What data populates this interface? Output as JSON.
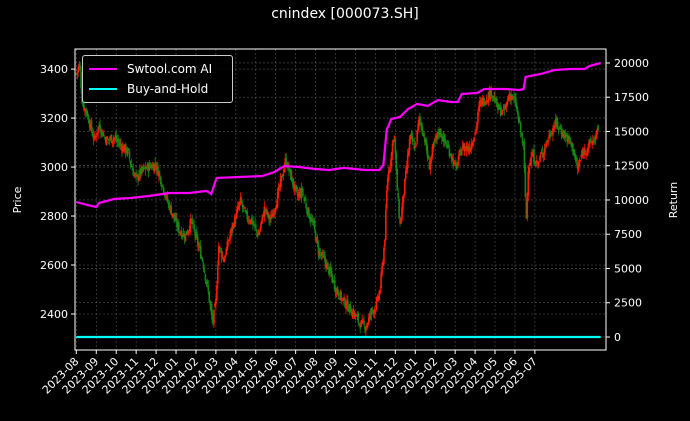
{
  "title": "cnindex [000073.SH]",
  "chart_data": {
    "type": "line",
    "title": "cnindex [000073.SH]",
    "xlabel": "",
    "ylabel": "Price",
    "y2label": "Return",
    "xlim": [
      "2023-07-29",
      "2025-10-18"
    ],
    "ylim": [
      2253,
      3482
    ],
    "y2lim": [
      -950,
      21020
    ],
    "grid": true,
    "legend_position": "top-left",
    "x_ticks": [
      "2023-08",
      "2023-09",
      "2023-10",
      "2023-11",
      "2023-12",
      "2024-01",
      "2024-02",
      "2024-03",
      "2024-04",
      "2024-05",
      "2024-06",
      "2024-07",
      "2024-08",
      "2024-09",
      "2024-10",
      "2024-11",
      "2024-12",
      "2025-01",
      "2025-02",
      "2025-03",
      "2025-04",
      "2025-05",
      "2025-06",
      "2025-07"
    ],
    "y_ticks": [
      2400,
      2600,
      2800,
      3000,
      3200,
      3400
    ],
    "y2_ticks": [
      0,
      2500,
      5000,
      7500,
      10000,
      12500,
      15000,
      17500,
      20000
    ],
    "colors": {
      "up": "#ff1a00",
      "down": "#128a12",
      "strategy": "#ff00ff",
      "buy_hold": "#00ffff",
      "grid": "#555555"
    },
    "price_candles_path": [
      [
        "2023-08-01",
        3380
      ],
      [
        "2023-08-06",
        3420
      ],
      [
        "2023-08-10",
        3260
      ],
      [
        "2023-08-17",
        3220
      ],
      [
        "2023-08-28",
        3110
      ],
      [
        "2023-09-05",
        3170
      ],
      [
        "2023-09-16",
        3110
      ],
      [
        "2023-09-28",
        3120
      ],
      [
        "2023-10-07",
        3090
      ],
      [
        "2023-10-19",
        3060
      ],
      [
        "2023-10-24",
        3000
      ],
      [
        "2023-11-01",
        2950
      ],
      [
        "2023-11-08",
        2980
      ],
      [
        "2023-11-19",
        3000
      ],
      [
        "2023-11-30",
        3010
      ],
      [
        "2023-12-07",
        2960
      ],
      [
        "2023-12-18",
        2860
      ],
      [
        "2023-12-27",
        2800
      ],
      [
        "2024-01-06",
        2740
      ],
      [
        "2024-01-15",
        2720
      ],
      [
        "2024-01-24",
        2780
      ],
      [
        "2024-02-02",
        2700
      ],
      [
        "2024-02-11",
        2620
      ],
      [
        "2024-02-20",
        2480
      ],
      [
        "2024-02-26",
        2360
      ],
      [
        "2024-03-01",
        2450
      ],
      [
        "2024-03-05",
        2680
      ],
      [
        "2024-03-13",
        2620
      ],
      [
        "2024-03-22",
        2720
      ],
      [
        "2024-04-01",
        2800
      ],
      [
        "2024-04-08",
        2860
      ],
      [
        "2024-04-16",
        2800
      ],
      [
        "2024-04-25",
        2780
      ],
      [
        "2024-05-05",
        2720
      ],
      [
        "2024-05-14",
        2830
      ],
      [
        "2024-05-23",
        2780
      ],
      [
        "2024-06-01",
        2850
      ],
      [
        "2024-06-08",
        2930
      ],
      [
        "2024-06-16",
        3030
      ],
      [
        "2024-06-24",
        2960
      ],
      [
        "2024-07-03",
        2880
      ],
      [
        "2024-07-11",
        2900
      ],
      [
        "2024-07-19",
        2820
      ],
      [
        "2024-07-28",
        2760
      ],
      [
        "2024-08-05",
        2660
      ],
      [
        "2024-08-14",
        2620
      ],
      [
        "2024-08-24",
        2560
      ],
      [
        "2024-09-02",
        2500
      ],
      [
        "2024-09-11",
        2460
      ],
      [
        "2024-09-20",
        2430
      ],
      [
        "2024-09-29",
        2400
      ],
      [
        "2024-10-08",
        2360
      ],
      [
        "2024-10-17",
        2350
      ],
      [
        "2024-10-25",
        2410
      ],
      [
        "2024-11-02",
        2430
      ],
      [
        "2024-11-08",
        2500
      ],
      [
        "2024-11-15",
        2700
      ],
      [
        "2024-11-19",
        2950
      ],
      [
        "2024-11-25",
        3050
      ],
      [
        "2024-11-29",
        3150
      ],
      [
        "2024-12-04",
        2900
      ],
      [
        "2024-12-08",
        2760
      ],
      [
        "2024-12-16",
        2950
      ],
      [
        "2024-12-23",
        3120
      ],
      [
        "2025-01-01",
        3080
      ],
      [
        "2025-01-07",
        3200
      ],
      [
        "2025-01-15",
        3120
      ],
      [
        "2025-01-22",
        3000
      ],
      [
        "2025-01-28",
        3080
      ],
      [
        "2025-02-07",
        3150
      ],
      [
        "2025-02-16",
        3100
      ],
      [
        "2025-02-25",
        3050
      ],
      [
        "2025-03-02",
        2990
      ],
      [
        "2025-03-11",
        3080
      ],
      [
        "2025-03-23",
        3080
      ],
      [
        "2025-04-02",
        3150
      ],
      [
        "2025-04-08",
        3260
      ],
      [
        "2025-04-17",
        3280
      ],
      [
        "2025-04-26",
        3310
      ],
      [
        "2025-05-05",
        3240
      ],
      [
        "2025-05-14",
        3220
      ],
      [
        "2025-05-23",
        3300
      ],
      [
        "2025-06-02",
        3260
      ],
      [
        "2025-06-09",
        3150
      ],
      [
        "2025-06-14",
        3080
      ],
      [
        "2025-06-18",
        2780
      ],
      [
        "2025-06-21",
        3000
      ],
      [
        "2025-06-27",
        3050
      ],
      [
        "2025-07-05",
        3010
      ],
      [
        "2025-07-14",
        3070
      ],
      [
        "2025-07-23",
        3130
      ],
      [
        "2025-08-02",
        3180
      ],
      [
        "2025-08-10",
        3150
      ],
      [
        "2025-08-19",
        3120
      ],
      [
        "2025-08-28",
        3080
      ],
      [
        "2025-09-05",
        2990
      ],
      [
        "2025-09-13",
        3060
      ],
      [
        "2025-09-23",
        3090
      ],
      [
        "2025-10-02",
        3120
      ],
      [
        "2025-10-08",
        3160
      ]
    ],
    "series": [
      {
        "name": "Swtool.com AI",
        "axis": "right",
        "color": "#ff00ff",
        "points": [
          [
            "2023-08-01",
            9850
          ],
          [
            "2023-08-17",
            9640
          ],
          [
            "2023-08-31",
            9490
          ],
          [
            "2023-09-05",
            9780
          ],
          [
            "2023-09-28",
            10070
          ],
          [
            "2023-10-24",
            10150
          ],
          [
            "2023-11-20",
            10290
          ],
          [
            "2023-12-21",
            10510
          ],
          [
            "2024-01-21",
            10510
          ],
          [
            "2024-02-17",
            10660
          ],
          [
            "2024-02-24",
            10440
          ],
          [
            "2024-03-02",
            11610
          ],
          [
            "2024-04-07",
            11680
          ],
          [
            "2024-05-11",
            11750
          ],
          [
            "2024-05-29",
            12040
          ],
          [
            "2024-06-14",
            12480
          ],
          [
            "2024-07-06",
            12410
          ],
          [
            "2024-07-30",
            12260
          ],
          [
            "2024-08-22",
            12190
          ],
          [
            "2024-09-14",
            12340
          ],
          [
            "2024-10-15",
            12190
          ],
          [
            "2024-11-07",
            12190
          ],
          [
            "2024-11-13",
            12560
          ],
          [
            "2024-11-18",
            15110
          ],
          [
            "2024-11-25",
            15910
          ],
          [
            "2024-12-08",
            16060
          ],
          [
            "2024-12-20",
            16640
          ],
          [
            "2025-01-04",
            17010
          ],
          [
            "2025-01-20",
            16860
          ],
          [
            "2025-02-05",
            17300
          ],
          [
            "2025-02-25",
            17150
          ],
          [
            "2025-03-05",
            17150
          ],
          [
            "2025-03-11",
            17740
          ],
          [
            "2025-04-04",
            17810
          ],
          [
            "2025-04-15",
            18100
          ],
          [
            "2025-05-17",
            18100
          ],
          [
            "2025-06-08",
            18030
          ],
          [
            "2025-06-14",
            18100
          ],
          [
            "2025-06-17",
            18980
          ],
          [
            "2025-07-10",
            19200
          ],
          [
            "2025-08-01",
            19490
          ],
          [
            "2025-08-24",
            19560
          ],
          [
            "2025-09-16",
            19560
          ],
          [
            "2025-09-23",
            19780
          ],
          [
            "2025-10-10",
            20000
          ]
        ]
      },
      {
        "name": "Buy-and-Hold",
        "axis": "right",
        "color": "#00ffff",
        "points": [
          [
            "2023-08-01",
            1
          ],
          [
            "2025-10-10",
            1
          ]
        ]
      }
    ]
  }
}
